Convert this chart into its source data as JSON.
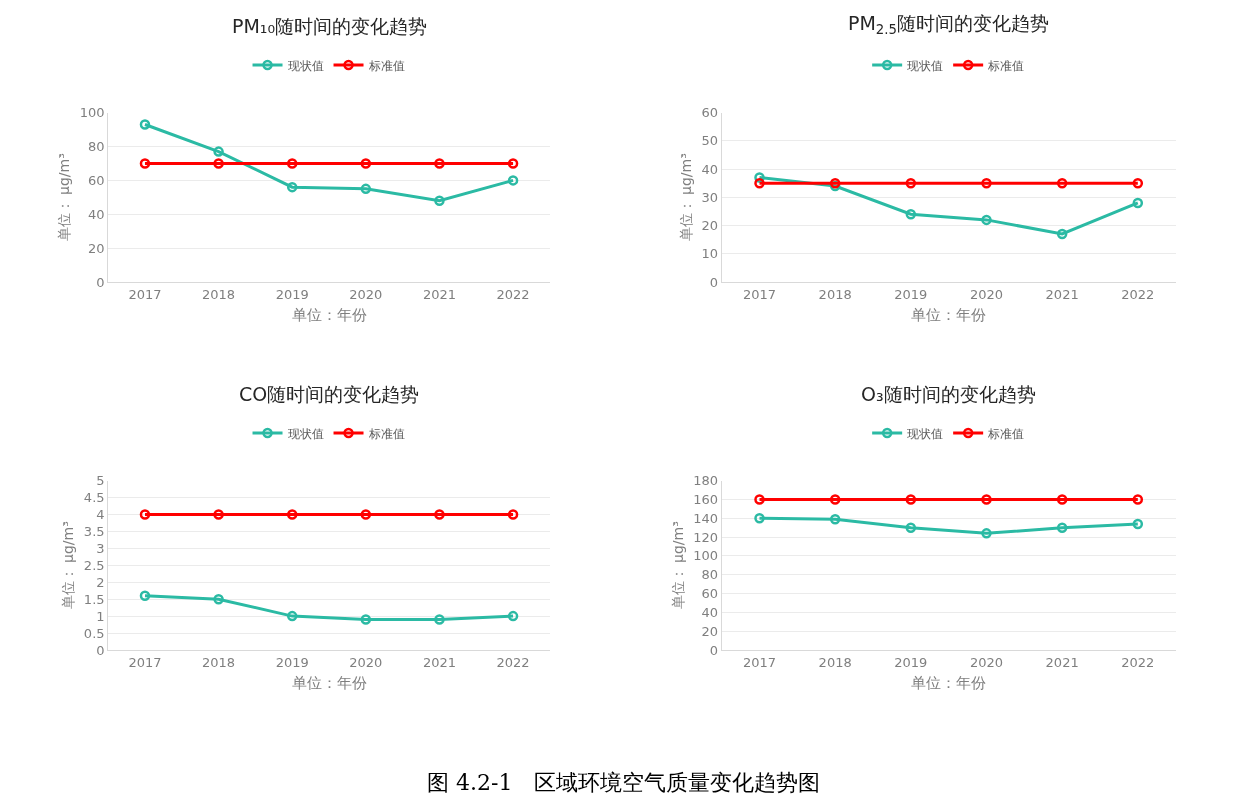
{
  "chart_data": [
    {
      "type": "line",
      "title": "PM₁₀随时间的变化趋势",
      "xlabel": "单位：年份",
      "ylabel": "单位： μg/m³",
      "categories": [
        "2017",
        "2018",
        "2019",
        "2020",
        "2021",
        "2022"
      ],
      "series": [
        {
          "name": "现状值",
          "color": "#2bbaa4",
          "values": [
            93,
            77,
            56,
            55,
            48,
            60
          ]
        },
        {
          "name": "标准值",
          "color": "#ff0000",
          "values": [
            70,
            70,
            70,
            70,
            70,
            70
          ]
        }
      ],
      "ylim": [
        0,
        100
      ],
      "yticks": [
        0,
        20,
        40,
        60,
        80,
        100
      ],
      "grid": "y",
      "legend": "top",
      "marker": "circle",
      "line_style": "solid"
    },
    {
      "type": "line",
      "title": "PM$_{2.5}$随时间的变化趋势",
      "xlabel": "单位：年份",
      "ylabel": "单位： μg/m³",
      "categories": [
        "2017",
        "2018",
        "2019",
        "2020",
        "2021",
        "2022"
      ],
      "series": [
        {
          "name": "现状值",
          "color": "#2bbaa4",
          "values": [
            37,
            34,
            24,
            22,
            17,
            28
          ]
        },
        {
          "name": "标准值",
          "color": "#ff0000",
          "values": [
            35,
            35,
            35,
            35,
            35,
            35
          ]
        }
      ],
      "ylim": [
        0,
        60
      ],
      "yticks": [
        0,
        10,
        20,
        30,
        40,
        50,
        60
      ],
      "grid": "y",
      "legend": "top",
      "marker": "circle",
      "line_style": "solid"
    },
    {
      "type": "line",
      "title": "CO随时间的变化趋势",
      "xlabel": "单位：年份",
      "ylabel": "单位： μg/m³",
      "categories": [
        "2017",
        "2018",
        "2019",
        "2020",
        "2021",
        "2022"
      ],
      "series": [
        {
          "name": "现状值",
          "color": "#2bbaa4",
          "values": [
            1.6,
            1.5,
            1.0,
            0.9,
            0.9,
            1.0
          ]
        },
        {
          "name": "标准值",
          "color": "#ff0000",
          "values": [
            4,
            4,
            4,
            4,
            4,
            4
          ]
        }
      ],
      "ylim": [
        0,
        5
      ],
      "yticks": [
        0,
        0.5,
        1,
        1.5,
        2,
        2.5,
        3,
        3.5,
        4,
        4.5,
        5
      ],
      "grid": "y",
      "legend": "top",
      "marker": "circle",
      "line_style": "solid"
    },
    {
      "type": "line",
      "title": "O₃随时间的变化趋势",
      "xlabel": "单位：年份",
      "ylabel": "单位： μg/m³",
      "categories": [
        "2017",
        "2018",
        "2019",
        "2020",
        "2021",
        "2022"
      ],
      "series": [
        {
          "name": "现状值",
          "color": "#2bbaa4",
          "values": [
            140,
            139,
            130,
            124,
            130,
            134
          ]
        },
        {
          "name": "标准值",
          "color": "#ff0000",
          "values": [
            160,
            160,
            160,
            160,
            160,
            160
          ]
        }
      ],
      "ylim": [
        0,
        180
      ],
      "yticks": [
        0,
        20,
        40,
        60,
        80,
        100,
        120,
        140,
        160,
        180
      ],
      "grid": "y",
      "legend": "top",
      "marker": "circle",
      "line_style": "solid",
      "annotations": [
        "图 4.2-1　区域环境空气质量变化趋势图"
      ]
    }
  ]
}
